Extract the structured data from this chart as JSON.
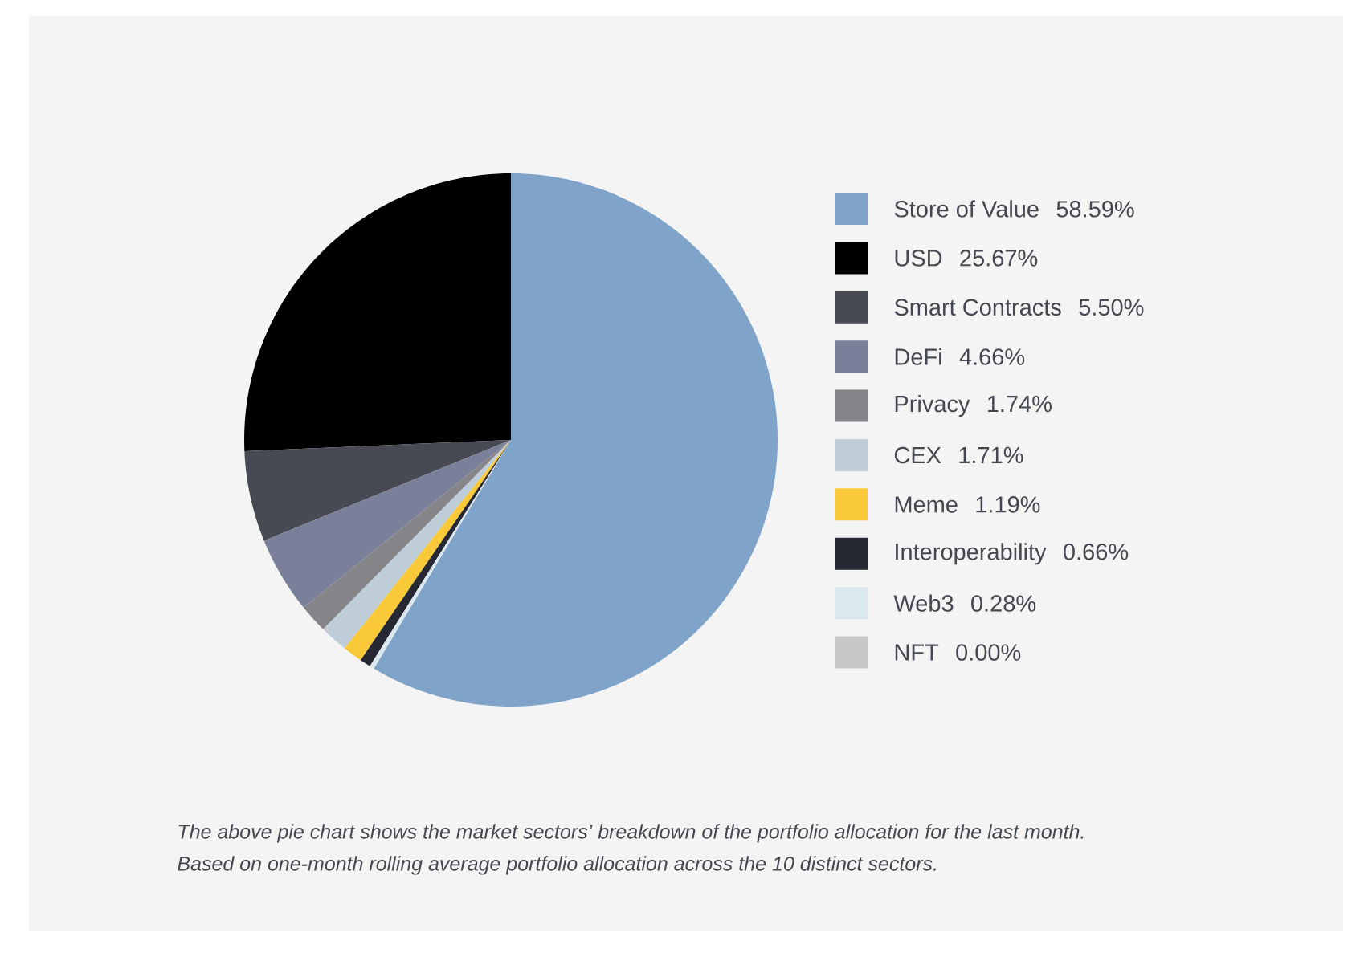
{
  "chart_data": {
    "type": "pie",
    "categories": [
      "Store of Value",
      "USD",
      "Smart Contracts",
      "DeFi",
      "Privacy",
      "CEX",
      "Meme",
      "Interoperability",
      "Web3",
      "NFT"
    ],
    "values": [
      58.59,
      25.67,
      5.5,
      4.66,
      1.74,
      1.71,
      1.19,
      0.66,
      0.28,
      0.0
    ],
    "value_labels": [
      "58.59%",
      "25.67%",
      "5.50%",
      "4.66%",
      "1.74%",
      "1.71%",
      "1.19%",
      "0.66%",
      "0.28%",
      "0.00%"
    ],
    "colors": [
      "#7fa3c9",
      "#000000",
      "#474a52",
      "#7a8099",
      "#858589",
      "#bfcdd9",
      "#f9c93a",
      "#262833",
      "#dbe8ef",
      "#c8c8c8"
    ],
    "legend": "right",
    "annotations": [
      "The above pie chart shows the market sectors’ breakdown of the portfolio allocation for the last month.",
      "Based on one-month rolling average portfolio allocation across the 10 distinct sectors."
    ]
  }
}
